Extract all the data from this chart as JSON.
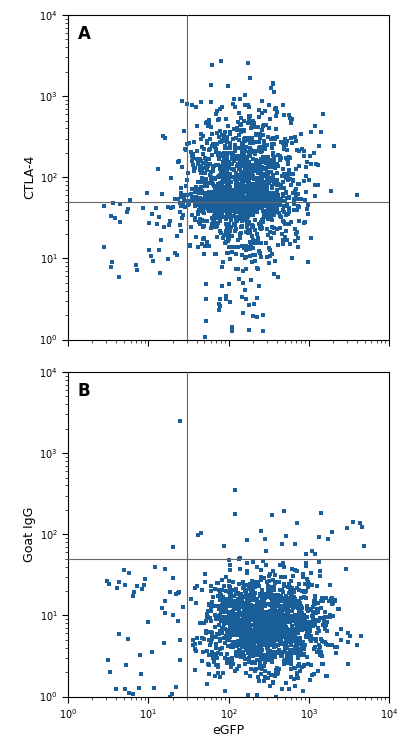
{
  "plot_A": {
    "label": "A",
    "ylabel": "CTLA-4",
    "vline": 30,
    "hline": 50,
    "seed": 42
  },
  "plot_B": {
    "label": "B",
    "ylabel": "Goat IgG",
    "vline": 30,
    "hline": 50,
    "seed": 7
  },
  "xlabel": "eGFP",
  "xlim": [
    1,
    10000
  ],
  "ylim": [
    1,
    10000
  ],
  "dot_color": "#1a5f99",
  "dot_size": 10,
  "line_color": "#666666",
  "line_width": 0.8,
  "bg_color": "#ffffff",
  "figsize": [
    4.01,
    7.49
  ],
  "dpi": 100
}
